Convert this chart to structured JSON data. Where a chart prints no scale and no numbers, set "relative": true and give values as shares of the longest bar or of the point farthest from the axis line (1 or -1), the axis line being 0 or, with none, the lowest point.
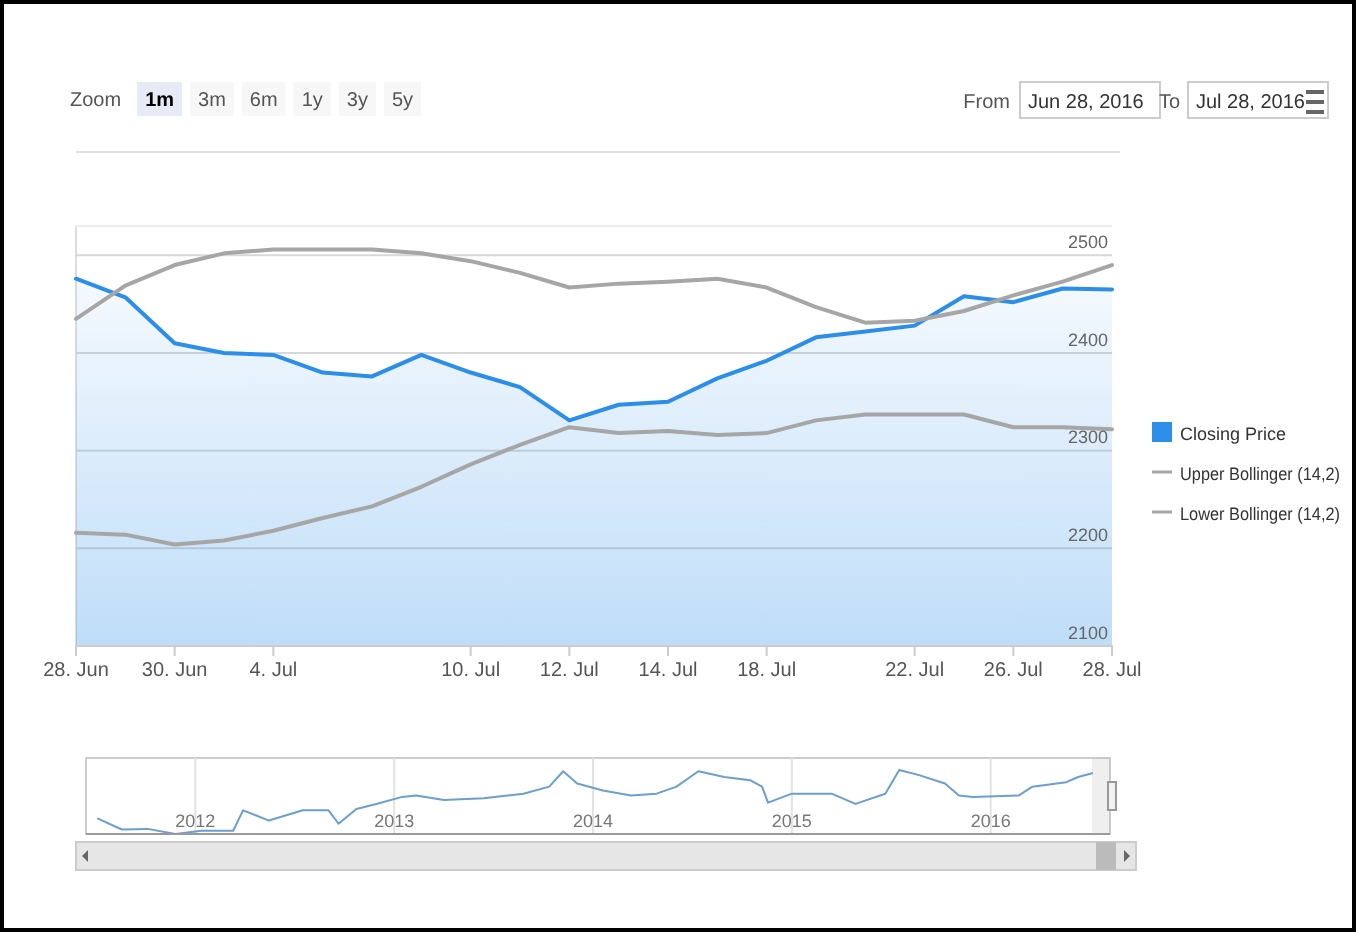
{
  "chart_data": [
    {
      "type": "line",
      "categories": [
        "28. Jun",
        null,
        "30. Jun",
        null,
        "4. Jul",
        null,
        null,
        null,
        "10. Jul",
        null,
        "12. Jul",
        null,
        "14. Jul",
        null,
        "18. Jul",
        null,
        null,
        "22. Jul",
        null,
        "26. Jul",
        null,
        "28. Jul"
      ],
      "ylim": [
        2100,
        2530
      ],
      "yticks": [
        2100,
        2200,
        2300,
        2400,
        2500
      ],
      "grid": "y",
      "legend": "right",
      "annotations": [
        "Zoom",
        "1m",
        "3m",
        "6m",
        "1y",
        "3y",
        "5y",
        "From",
        "Jun 28, 2016",
        "To",
        "Jul 28, 2016"
      ],
      "series": [
        {
          "name": "Closing Price",
          "type": "area",
          "color": "#2b8ee8",
          "values": [
            2476,
            2457,
            2410,
            2400,
            2398,
            2380,
            2376,
            2398,
            2380,
            2365,
            2331,
            2347,
            2350,
            2374,
            2392,
            2416,
            2422,
            2428,
            2458,
            2452,
            2466,
            2465
          ]
        },
        {
          "name": "Upper Bollinger (14,2)",
          "color": "#a6a6a6",
          "values": [
            2435,
            2469,
            2490,
            2502,
            2506,
            2506,
            2506,
            2502,
            2494,
            2482,
            2467,
            2471,
            2473,
            2476,
            2467,
            2447,
            2431,
            2433,
            2443,
            2459,
            2473,
            2490
          ]
        },
        {
          "name": "Lower Bollinger (14,2)",
          "color": "#a6a6a6",
          "values": [
            2216,
            2214,
            2204,
            2208,
            2218,
            2231,
            2243,
            2263,
            2286,
            2306,
            2324,
            2318,
            2320,
            2316,
            2318,
            2331,
            2337,
            2337,
            2337,
            2324,
            2324,
            2322
          ]
        }
      ]
    },
    {
      "type": "line",
      "relative": true,
      "grid": "x",
      "tick_labels": "x",
      "xlim": [
        2011.45,
        2016.6
      ],
      "xticks": [
        2012,
        2013,
        2014,
        2015,
        2016
      ],
      "series": [
        {
          "color": "#6a9fd0",
          "x": [
            2011.51,
            2011.63,
            2011.76,
            2011.9,
            2012.03,
            2012.19,
            2012.24,
            2012.37,
            2012.54,
            2012.67,
            2012.72,
            2012.81,
            2012.91,
            2013.04,
            2013.11,
            2013.25,
            2013.45,
            2013.65,
            2013.78,
            2013.85,
            2013.92,
            2014.05,
            2014.19,
            2014.32,
            2014.42,
            2014.53,
            2014.66,
            2014.79,
            2014.85,
            2014.88,
            2015.0,
            2015.2,
            2015.32,
            2015.47,
            2015.54,
            2015.64,
            2015.77,
            2015.84,
            2015.91,
            2016.14,
            2016.21,
            2016.38,
            2016.44,
            2016.51
          ],
          "values": [
            0.24,
            0.07,
            0.08,
            0,
            0.05,
            0.05,
            0.37,
            0.21,
            0.37,
            0.37,
            0.16,
            0.39,
            0.47,
            0.58,
            0.6,
            0.53,
            0.56,
            0.63,
            0.74,
            0.98,
            0.79,
            0.68,
            0.6,
            0.63,
            0.74,
            0.98,
            0.89,
            0.84,
            0.74,
            0.49,
            0.63,
            0.63,
            0.47,
            0.63,
            1,
            0.92,
            0.79,
            0.6,
            0.58,
            0.6,
            0.74,
            0.81,
            0.89,
            0.95
          ]
        }
      ]
    }
  ]
}
